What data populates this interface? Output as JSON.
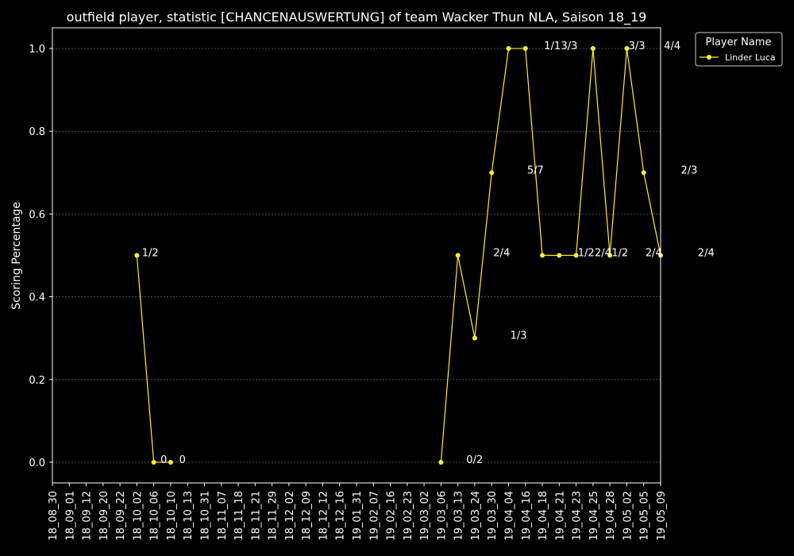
{
  "chart_data": {
    "type": "line",
    "title": "outfield player, statistic [CHANCENAUSWERTUNG] of team Wacker Thun NLA, Saison 18_19",
    "xlabel": "",
    "ylabel": "Scoring Percentage",
    "ylim": [
      -0.05,
      1.05
    ],
    "yticks": [
      "0.0",
      "0.2",
      "0.4",
      "0.6",
      "0.8",
      "1.0"
    ],
    "ytick_values": [
      0.0,
      0.2,
      0.4,
      0.6,
      0.8,
      1.0
    ],
    "grid": true,
    "legend": {
      "title": "Player Name",
      "placement": "top-right"
    },
    "categories": [
      "18_08_30",
      "18_09_01",
      "18_09_12",
      "18_09_20",
      "18_09_22",
      "18_10_02",
      "18_10_06",
      "18_10_10",
      "18_10_13",
      "18_10_31",
      "18_11_07",
      "18_11_18",
      "18_11_21",
      "18_11_29",
      "18_12_02",
      "18_12_09",
      "18_12_12",
      "18_12_16",
      "19_01_31",
      "19_02_07",
      "19_02_16",
      "19_02_23",
      "19_03_02",
      "19_03_06",
      "19_03_13",
      "19_03_24",
      "19_03_30",
      "19_04_04",
      "19_04_16",
      "19_04_18",
      "19_04_21",
      "19_04_23",
      "19_04_25",
      "19_04_28",
      "19_05_02",
      "19_05_05",
      "19_05_09"
    ],
    "series": [
      {
        "name": "Linder Luca",
        "color": "#ffee33",
        "segments": [
          [
            [
              5,
              0.5
            ],
            [
              6,
              0.0
            ],
            [
              7,
              0.0
            ]
          ],
          [
            [
              23,
              0.0
            ],
            [
              24,
              0.5
            ],
            [
              25,
              0.3
            ],
            [
              26,
              0.7
            ],
            [
              27,
              1.0
            ],
            [
              28,
              1.0
            ],
            [
              29,
              0.5
            ],
            [
              30,
              0.5
            ],
            [
              31,
              0.5
            ],
            [
              32,
              1.0
            ],
            [
              33,
              0.5
            ],
            [
              34,
              1.0
            ],
            [
              35,
              0.7
            ],
            [
              36,
              0.5
            ]
          ]
        ]
      }
    ],
    "annotations": [
      {
        "x": 5.3,
        "y": 0.5,
        "text": "1/2"
      },
      {
        "x": 6.4,
        "y": 0.0,
        "text": "0"
      },
      {
        "x": 7.5,
        "y": 0.0,
        "text": "0"
      },
      {
        "x": 24.5,
        "y": 0.0,
        "text": "0/2"
      },
      {
        "x": 26.1,
        "y": 0.5,
        "text": "2/4"
      },
      {
        "x": 27.1,
        "y": 0.3,
        "text": "1/3"
      },
      {
        "x": 28.1,
        "y": 0.7,
        "text": "5/7"
      },
      {
        "x": 29.1,
        "y": 1.0,
        "text": "1/1"
      },
      {
        "x": 30.1,
        "y": 1.0,
        "text": "3/3"
      },
      {
        "x": 31.1,
        "y": 0.5,
        "text": "1/2"
      },
      {
        "x": 32.1,
        "y": 0.5,
        "text": "2/4"
      },
      {
        "x": 33.1,
        "y": 0.5,
        "text": "1/2"
      },
      {
        "x": 34.1,
        "y": 1.0,
        "text": "3/3"
      },
      {
        "x": 35.1,
        "y": 0.5,
        "text": "2/4"
      },
      {
        "x": 36.2,
        "y": 1.0,
        "text": "4/4"
      },
      {
        "x": 37.2,
        "y": 0.7,
        "text": "2/3"
      },
      {
        "x": 38.2,
        "y": 0.5,
        "text": "2/4"
      }
    ]
  }
}
